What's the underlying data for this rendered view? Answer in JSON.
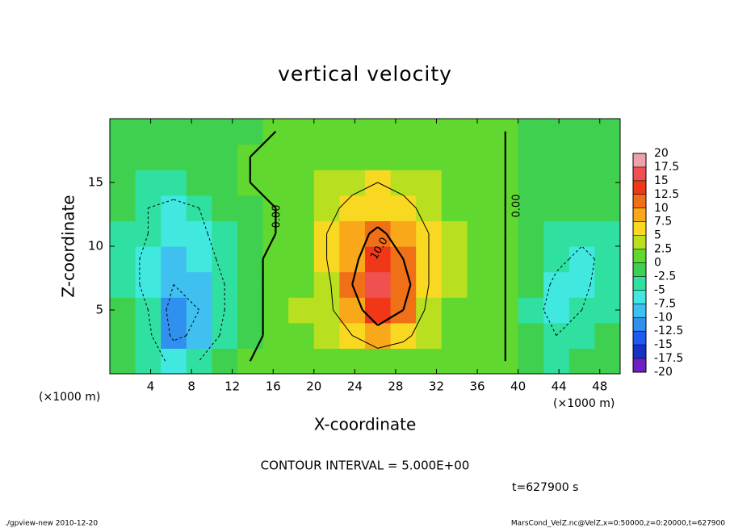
{
  "chart_data": {
    "type": "contour",
    "title": "vertical velocity",
    "x_label": "X-coordinate",
    "y_label": "Z-coordinate",
    "x_unit_left": "(×1000 m)",
    "x_unit_right": "(×1000 m)",
    "xlim": [
      0,
      50
    ],
    "xticks": [
      4,
      8,
      12,
      16,
      20,
      24,
      28,
      32,
      36,
      40,
      44,
      48
    ],
    "ylim": [
      0,
      20
    ],
    "yticks": [
      5,
      10,
      15
    ],
    "x": [
      1.25,
      3.75,
      6.25,
      8.75,
      11.25,
      13.75,
      16.25,
      18.75,
      21.25,
      23.75,
      26.25,
      28.75,
      31.25,
      33.75,
      36.25,
      38.75,
      41.25,
      43.75,
      46.25,
      48.75
    ],
    "y": [
      1,
      3,
      5,
      7,
      9,
      11,
      13,
      15,
      17,
      19
    ],
    "values": [
      [
        -1,
        -3,
        -6,
        -5,
        -2,
        0,
        1,
        1,
        1,
        2,
        2,
        2,
        2,
        1,
        1,
        0,
        -1,
        -3,
        -2,
        -1
      ],
      [
        -2,
        -4,
        -11,
        -9,
        -4,
        -1,
        1,
        2,
        3,
        5,
        8,
        6,
        3,
        2,
        1,
        0,
        -2,
        -5,
        -4,
        -2
      ],
      [
        -2,
        -5,
        -12,
        -10,
        -5,
        -1,
        1,
        3,
        4,
        8,
        13,
        10,
        4,
        2,
        1,
        0,
        -3,
        -7,
        -5,
        -3
      ],
      [
        -3,
        -6,
        -10,
        -9,
        -5,
        -1,
        1,
        2,
        4,
        10,
        15,
        12,
        5,
        3,
        1,
        0,
        -2,
        -6,
        -6,
        -3
      ],
      [
        -3,
        -6,
        -8,
        -7,
        -4,
        -1,
        1,
        2,
        5,
        9,
        13,
        10,
        5,
        3,
        1,
        0,
        -2,
        -4,
        -6,
        -4
      ],
      [
        -3,
        -5,
        -7,
        -6,
        -3,
        -1,
        0,
        2,
        5,
        8,
        11,
        8,
        5,
        3,
        1,
        0,
        -1,
        -3,
        -4,
        -3
      ],
      [
        -2,
        -5,
        -6,
        -5,
        -2,
        -1,
        0,
        2,
        4,
        6,
        7,
        6,
        4,
        2,
        1,
        0,
        -1,
        -2,
        -2,
        -2
      ],
      [
        -1,
        -3,
        -3,
        -2,
        -1,
        0,
        0,
        1,
        3,
        4,
        5,
        4,
        3,
        2,
        1,
        0,
        -1,
        -1,
        -1,
        -1
      ],
      [
        -1,
        -1,
        -1,
        -1,
        -1,
        0,
        0,
        1,
        1,
        2,
        2,
        2,
        1,
        1,
        1,
        0,
        -1,
        -1,
        -1,
        -1
      ],
      [
        -1,
        -1,
        -1,
        -1,
        -1,
        -1,
        0,
        1,
        1,
        1,
        1,
        1,
        1,
        1,
        1,
        0,
        -1,
        -1,
        -1,
        -1
      ]
    ],
    "contour_levels": [
      -10,
      -5,
      0,
      5,
      10
    ],
    "contour_labels": [
      "0.00",
      "0.00",
      "10.0"
    ],
    "colorbar_ticks": [
      20,
      17.5,
      15,
      12.5,
      10,
      7.5,
      5,
      2.5,
      0,
      -2.5,
      -5,
      -7.5,
      -10,
      -12.5,
      -15,
      -17.5,
      -20
    ],
    "colorbar_colors": [
      "#f0a0a8",
      "#f05050",
      "#f03818",
      "#f07018",
      "#f8a818",
      "#f8d820",
      "#b8e020",
      "#60d830",
      "#40d050",
      "#30e0a0",
      "#40e8e0",
      "#40c0f0",
      "#3090f0",
      "#2058f0",
      "#1830c8",
      "#7020c0"
    ],
    "annotation": "CONTOUR INTERVAL = 5.000E+00",
    "time_label": "t=627900 s",
    "footer_left": "./gpview-new  2010-12-20",
    "footer_right": "MarsCond_VelZ.nc@VelZ,x=0:50000,z=0:20000,t=627900"
  }
}
